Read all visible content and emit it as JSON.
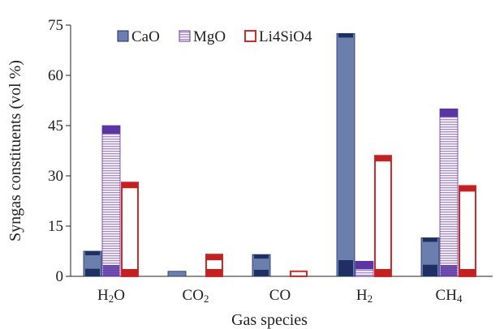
{
  "chart_data": {
    "type": "bar",
    "xlabel": "Gas species",
    "ylabel": "Syngas constituents (vol %)",
    "ylim": [
      0,
      75
    ],
    "yticks": [
      "0",
      "15",
      "30",
      "45",
      "60",
      "75"
    ],
    "categories": [
      "H2O",
      "CO2",
      "CO",
      "H2",
      "CH4"
    ],
    "category_labels": [
      {
        "base": "H",
        "sub": "2",
        "tail": "O"
      },
      {
        "base": "CO",
        "sub": "2",
        "tail": ""
      },
      {
        "base": "CO",
        "sub": "",
        "tail": ""
      },
      {
        "base": "H",
        "sub": "2",
        "tail": ""
      },
      {
        "base": "CH",
        "sub": "4",
        "tail": ""
      }
    ],
    "legend_position": "top-left",
    "grid": false,
    "series": [
      {
        "name": "CaO",
        "values": [
          7.5,
          1.5,
          6.5,
          72.5,
          11.5
        ],
        "color": "#6a7fab",
        "dark": "#1f2e63",
        "style": "solid"
      },
      {
        "name": "MgO",
        "values": [
          45,
          0,
          0,
          4.5,
          50
        ],
        "color": "#a98bd0",
        "dark": "#5a35a3",
        "style": "hatched"
      },
      {
        "name": "Li4SiO4",
        "values": [
          28,
          6.5,
          1.5,
          36,
          27
        ],
        "color": "#d62a2a",
        "dark": "#c61f1f",
        "style": "outline"
      }
    ]
  }
}
